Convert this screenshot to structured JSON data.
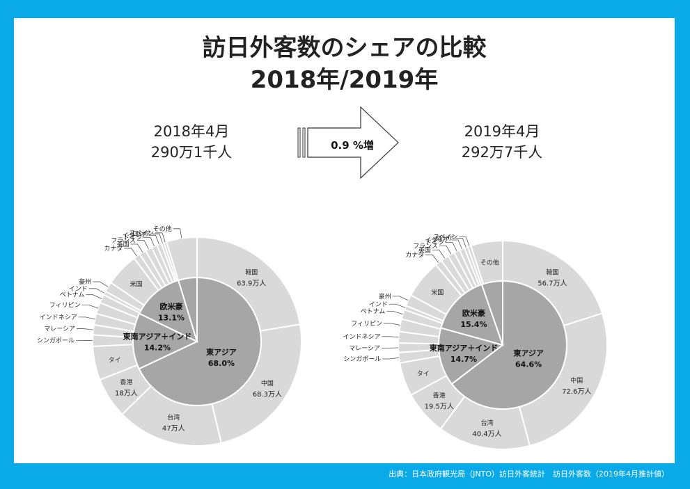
{
  "slide": {
    "title_line1": "訪日外客数のシェアの比較",
    "title_line2": "2018年/2019年",
    "left_month": "2018年4月",
    "left_total": "290万1千人",
    "right_month": "2019年4月",
    "right_total": "292万7千人",
    "arrow_label": "0.9 %増",
    "source": "出典：日本政府観光局（JNTO）訪日外客統計　訪日外客数（2019年4月推計値）"
  },
  "colors": {
    "background": "#0aa9e8",
    "outer": "#d9d9d9",
    "inner": "#a6a6a6",
    "border": "#ffffff"
  },
  "chart_data": [
    {
      "type": "pie",
      "year": "2018年4月",
      "inner": [
        {
          "label": "東アジア",
          "value": 68.0,
          "display": "68.0%"
        },
        {
          "label": "東南アジア＋インド",
          "value": 14.2,
          "display": "14.2%"
        },
        {
          "label": "欧米豪",
          "value": 13.1,
          "display": "13.1%"
        },
        {
          "label": "",
          "value": 4.7,
          "display": ""
        }
      ],
      "outer": [
        {
          "label": "韓国",
          "value": 63.9,
          "sub": "63.9万人"
        },
        {
          "label": "中国",
          "value": 68.3,
          "sub": "68.3万人"
        },
        {
          "label": "台湾",
          "value": 47,
          "sub": "47万人"
        },
        {
          "label": "香港",
          "value": 18,
          "sub": "18万人"
        },
        {
          "label": "タイ",
          "value": 15
        },
        {
          "label": "シンガポール",
          "value": 5
        },
        {
          "label": "マレーシア",
          "value": 4.4
        },
        {
          "label": "インドネシア",
          "value": 5
        },
        {
          "label": "フィリピン",
          "value": 5
        },
        {
          "label": "ベトナム",
          "value": 3.8
        },
        {
          "label": "インド",
          "value": 1.7
        },
        {
          "label": "豪州",
          "value": 4.5
        },
        {
          "label": "米国",
          "value": 14.7
        },
        {
          "label": "カナダ",
          "value": 3
        },
        {
          "label": "英国",
          "value": 3
        },
        {
          "label": "フランス",
          "value": 3
        },
        {
          "label": "ドイツ",
          "value": 2.5
        },
        {
          "label": "イタリア",
          "value": 2
        },
        {
          "label": "ロシア",
          "value": 1.2
        },
        {
          "label": "スペイン",
          "value": 1.2
        },
        {
          "label": "その他",
          "value": 13.5
        }
      ]
    },
    {
      "type": "pie",
      "year": "2019年4月",
      "inner": [
        {
          "label": "東アジア",
          "value": 64.6,
          "display": "64.6%"
        },
        {
          "label": "東南アジア＋インド",
          "value": 14.7,
          "display": "14.7%"
        },
        {
          "label": "欧米豪",
          "value": 15.4,
          "display": "15.4%"
        },
        {
          "label": "",
          "value": 5.3,
          "display": ""
        }
      ],
      "outer": [
        {
          "label": "韓国",
          "value": 56.7,
          "sub": "56.7万人"
        },
        {
          "label": "中国",
          "value": 72.6,
          "sub": "72.6万人"
        },
        {
          "label": "台湾",
          "value": 40.4,
          "sub": "40.4万人"
        },
        {
          "label": "香港",
          "value": 19.5,
          "sub": "19.5万人"
        },
        {
          "label": "タイ",
          "value": 14.7
        },
        {
          "label": "シンガポール",
          "value": 4.5
        },
        {
          "label": "マレーシア",
          "value": 4.1
        },
        {
          "label": "インドネシア",
          "value": 5
        },
        {
          "label": "フィリピン",
          "value": 5.5
        },
        {
          "label": "ベトナム",
          "value": 4.2
        },
        {
          "label": "インド",
          "value": 1.8
        },
        {
          "label": "豪州",
          "value": 5
        },
        {
          "label": "米国",
          "value": 17
        },
        {
          "label": "カナダ",
          "value": 3
        },
        {
          "label": "英国",
          "value": 3.5
        },
        {
          "label": "フランス",
          "value": 3
        },
        {
          "label": "ドイツ",
          "value": 2.6
        },
        {
          "label": "イタリア",
          "value": 2.2
        },
        {
          "label": "ロシア",
          "value": 1.5
        },
        {
          "label": "スペイン",
          "value": 1.5
        },
        {
          "label": "その他",
          "value": 13.9
        }
      ]
    }
  ]
}
